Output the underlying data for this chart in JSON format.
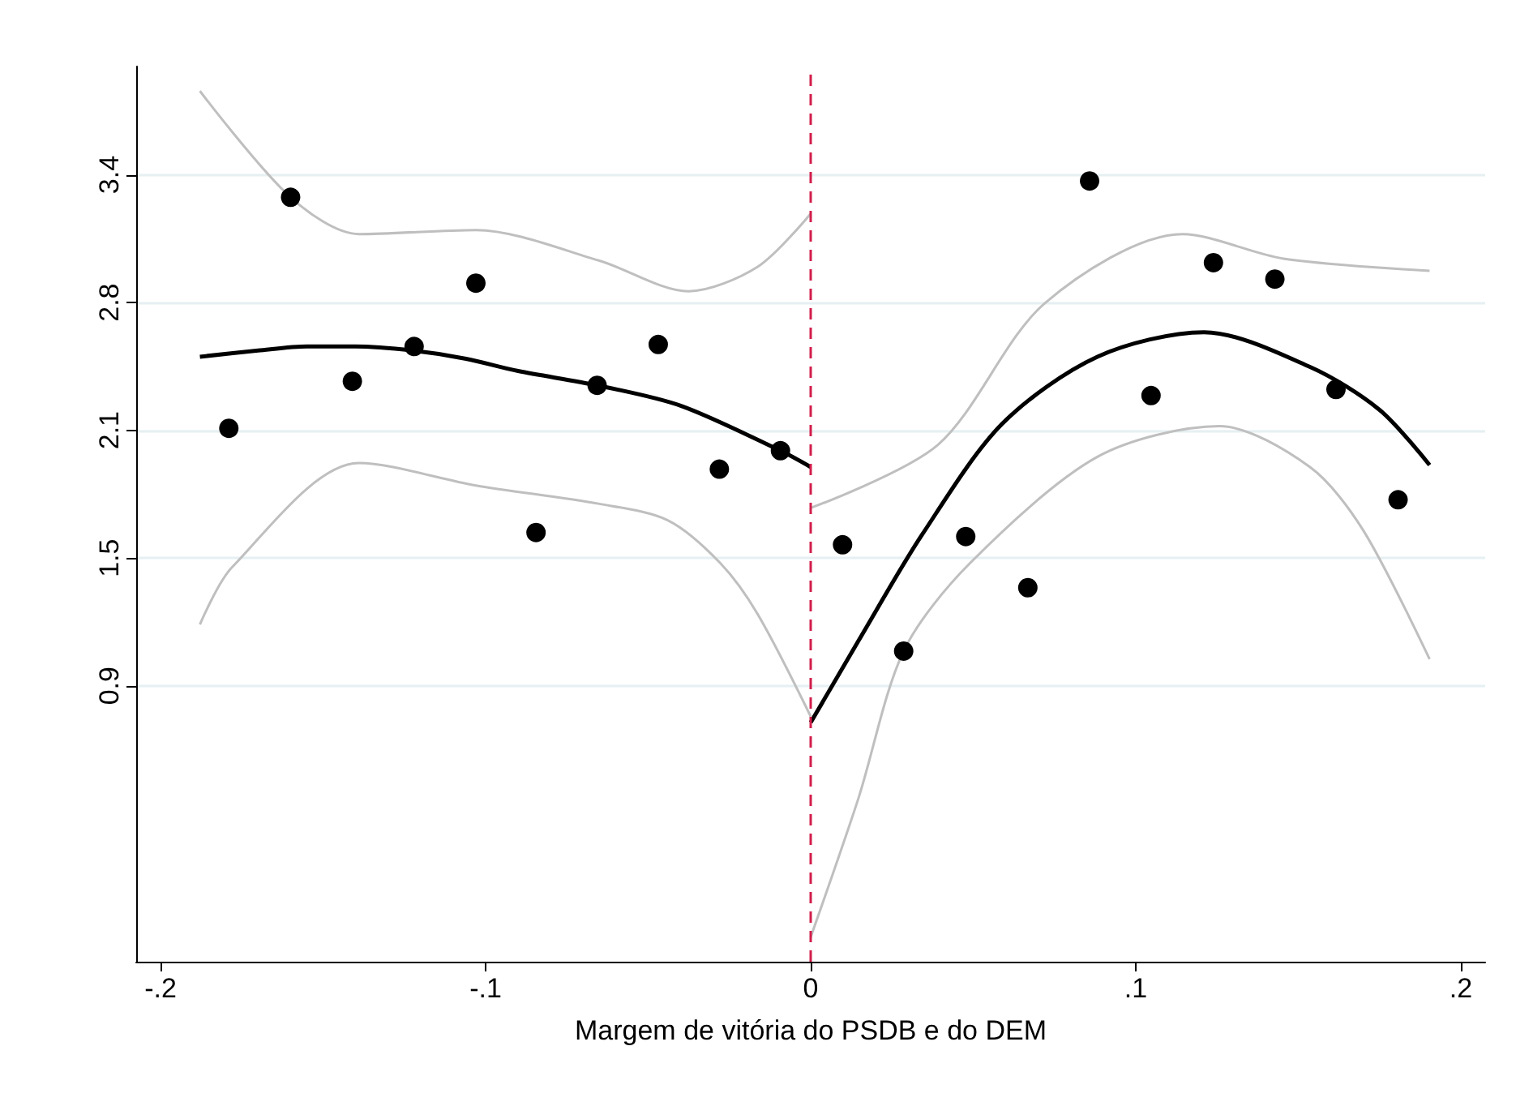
{
  "chart_data": {
    "type": "scatter",
    "xlabel": "Margem de vitória do PSDB e do DEM",
    "xlim": [
      -0.2075,
      0.2075
    ],
    "xticks": [
      {
        "value": -0.2,
        "label": "-.2"
      },
      {
        "value": -0.1,
        "label": "-.1"
      },
      {
        "value": 0,
        "label": "0"
      },
      {
        "value": 0.1,
        "label": ".1"
      },
      {
        "value": 0.2,
        "label": ".2"
      }
    ],
    "ylim": [
      -0.45,
      3.93
    ],
    "yticks": [
      {
        "value": 0.9,
        "label": "0.9"
      },
      {
        "value": 1.525,
        "label": "1.5"
      },
      {
        "value": 2.15,
        "label": "2.1"
      },
      {
        "value": 2.775,
        "label": "2.8"
      },
      {
        "value": 3.4,
        "label": "3.4"
      }
    ],
    "grid": "y",
    "series": [
      {
        "color": "#000000",
        "marker": "circle",
        "x": [
          -0.179,
          -0.16,
          -0.141,
          -0.122,
          -0.103,
          -0.0845,
          -0.0657,
          -0.0469,
          -0.0281,
          -0.0093,
          0.0098,
          0.0286,
          0.0477,
          0.0668,
          0.0858,
          0.1047,
          0.1239,
          0.1428,
          0.1616,
          0.1807
        ],
        "values": [
          2.16,
          3.29,
          2.39,
          2.56,
          2.87,
          1.65,
          2.37,
          2.57,
          1.96,
          2.05,
          1.59,
          1.07,
          1.63,
          1.38,
          3.37,
          2.32,
          2.97,
          2.89,
          2.35,
          1.81
        ]
      },
      {
        "type": "line",
        "color": "#000000",
        "marker": "none",
        "line_style": "solid",
        "x": [
          -0.1879,
          -0.17,
          -0.155,
          -0.14,
          -0.1225,
          -0.106,
          -0.09,
          -0.0657,
          -0.04,
          -0.0093,
          0
        ],
        "values": [
          2.51,
          2.54,
          2.56,
          2.56,
          2.54,
          2.5,
          2.44,
          2.37,
          2.27,
          2.05,
          1.97
        ]
      },
      {
        "type": "line",
        "color": "#000000",
        "marker": "none",
        "line_style": "solid",
        "x": [
          0,
          0.0147,
          0.0343,
          0.0588,
          0.0882,
          0.121,
          0.1536,
          0.175,
          0.1904
        ],
        "values": [
          0.72,
          1.12,
          1.64,
          2.18,
          2.51,
          2.63,
          2.46,
          2.25,
          1.98
        ]
      },
      {
        "type": "line",
        "color": "#bfbfbf",
        "marker": "none",
        "line_style": "solid",
        "x": [
          -0.1879,
          -0.16,
          -0.139,
          -0.103,
          -0.065,
          -0.0376,
          -0.0163,
          0
        ],
        "values": [
          3.81,
          3.29,
          3.11,
          3.13,
          2.98,
          2.83,
          2.95,
          3.21
        ]
      },
      {
        "type": "line",
        "color": "#bfbfbf",
        "marker": "none",
        "line_style": "solid",
        "x": [
          -0.1879,
          -0.178,
          -0.139,
          -0.103,
          -0.065,
          -0.044,
          -0.0278,
          -0.0163,
          0
        ],
        "values": [
          1.2,
          1.48,
          1.99,
          1.88,
          1.79,
          1.71,
          1.5,
          1.25,
          0.75
        ]
      },
      {
        "type": "line",
        "color": "#bfbfbf",
        "marker": "none",
        "line_style": "solid",
        "x": [
          0,
          0.0392,
          0.0719,
          0.1144,
          0.1454,
          0.1904
        ],
        "values": [
          1.77,
          2.08,
          2.77,
          3.11,
          2.99,
          2.93
        ]
      },
      {
        "type": "line",
        "color": "#bfbfbf",
        "marker": "none",
        "line_style": "solid",
        "x": [
          0,
          0.0147,
          0.0286,
          0.049,
          0.0882,
          0.1258,
          0.1536,
          0.17,
          0.1904
        ],
        "values": [
          -0.33,
          0.35,
          1.07,
          1.5,
          2.02,
          2.17,
          1.97,
          1.66,
          1.03
        ]
      }
    ],
    "ref_lines": [
      {
        "axis": "x",
        "value": 0,
        "color": "#d21e4b",
        "line_style": "dashed"
      }
    ]
  }
}
